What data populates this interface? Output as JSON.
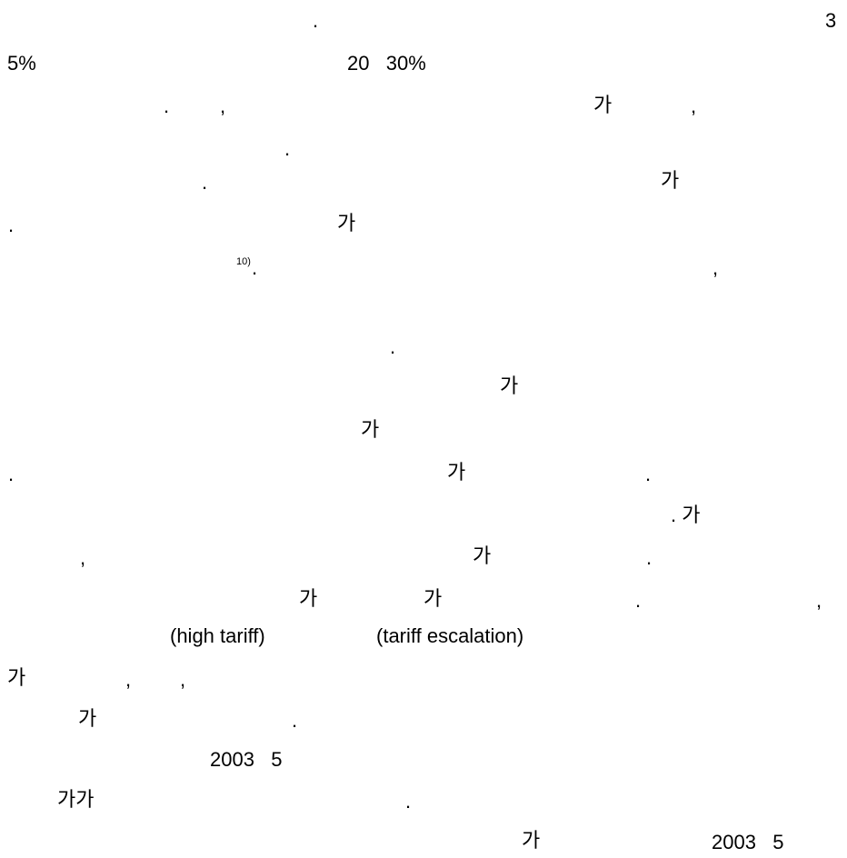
{
  "text_fragments": [
    {
      "id": "l1a",
      "text": "."
    },
    {
      "id": "l1b",
      "text": "3"
    },
    {
      "id": "l2a",
      "text": "5%"
    },
    {
      "id": "l2b",
      "text": "20   30%"
    },
    {
      "id": "l3a",
      "text": "."
    },
    {
      "id": "l3b",
      "text": ","
    },
    {
      "id": "l3c",
      "text": "가"
    },
    {
      "id": "l3d",
      "text": ","
    },
    {
      "id": "l4a",
      "text": "."
    },
    {
      "id": "l5a",
      "text": "."
    },
    {
      "id": "l5b",
      "text": "가"
    },
    {
      "id": "l6a",
      "text": "."
    },
    {
      "id": "l6b",
      "text": "가"
    },
    {
      "id": "l7sup",
      "text": "10)"
    },
    {
      "id": "l7a",
      "text": "."
    },
    {
      "id": "l7b",
      "text": ","
    },
    {
      "id": "l8a",
      "text": "."
    },
    {
      "id": "l9a",
      "text": "가"
    },
    {
      "id": "l10a",
      "text": "가"
    },
    {
      "id": "l11a",
      "text": "."
    },
    {
      "id": "l11b",
      "text": "가"
    },
    {
      "id": "l11c",
      "text": "."
    },
    {
      "id": "l12a",
      "text": ". 가"
    },
    {
      "id": "l13a",
      "text": ","
    },
    {
      "id": "l13b",
      "text": "가"
    },
    {
      "id": "l13c",
      "text": "."
    },
    {
      "id": "l14a",
      "text": "가"
    },
    {
      "id": "l14b",
      "text": "가"
    },
    {
      "id": "l14c",
      "text": "."
    },
    {
      "id": "l14d",
      "text": ","
    },
    {
      "id": "l15a",
      "text": "(high tariff)"
    },
    {
      "id": "l15b",
      "text": "(tariff escalation)"
    },
    {
      "id": "l16a",
      "text": "가"
    },
    {
      "id": "l16b",
      "text": ","
    },
    {
      "id": "l16c",
      "text": ","
    },
    {
      "id": "l17a",
      "text": "가"
    },
    {
      "id": "l17b",
      "text": "."
    },
    {
      "id": "l18a",
      "text": "2003   5"
    },
    {
      "id": "l19a",
      "text": "가가"
    },
    {
      "id": "l19b",
      "text": "."
    },
    {
      "id": "l20a",
      "text": "가"
    },
    {
      "id": "l20b",
      "text": "2003   5"
    }
  ]
}
